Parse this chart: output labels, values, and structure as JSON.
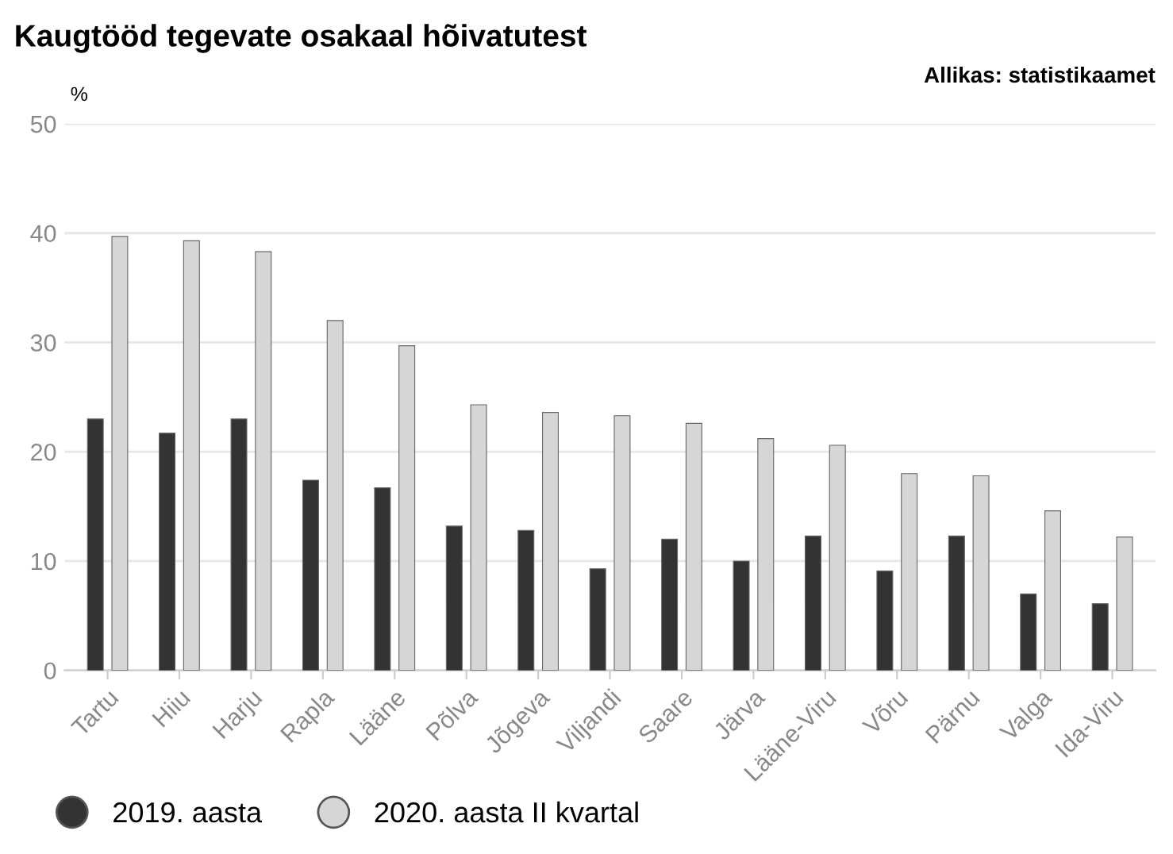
{
  "chart_data": {
    "type": "bar",
    "title": "Kaugtööd tegevate osakaal hõivatutest",
    "ylabel": "%",
    "annotations": [
      "Allikas: statistikaamet"
    ],
    "categories": [
      "Tartu",
      "Hiiu",
      "Harju",
      "Rapla",
      "Lääne",
      "Põlva",
      "Jõgeva",
      "Viljandi",
      "Saare",
      "Järva",
      "Lääne-Viru",
      "Võru",
      "Pärnu",
      "Valga",
      "Ida-Viru"
    ],
    "series": [
      {
        "name": "2019. aasta",
        "color": "#333333",
        "values": [
          23.0,
          21.7,
          23.0,
          17.4,
          16.7,
          13.2,
          12.8,
          9.3,
          12.0,
          10.0,
          12.3,
          9.1,
          12.3,
          7.0,
          6.1
        ]
      },
      {
        "name": "2020. aasta II kvartal",
        "color": "#d6d6d6",
        "values": [
          39.7,
          39.3,
          38.3,
          32.0,
          29.7,
          24.3,
          23.6,
          23.3,
          22.6,
          21.2,
          20.6,
          18.0,
          17.8,
          14.6,
          12.2
        ]
      }
    ],
    "ylim": [
      0,
      50
    ],
    "yticks": [
      0,
      10,
      20,
      30,
      40,
      50
    ],
    "grid": "y",
    "legend": "bottom left"
  }
}
